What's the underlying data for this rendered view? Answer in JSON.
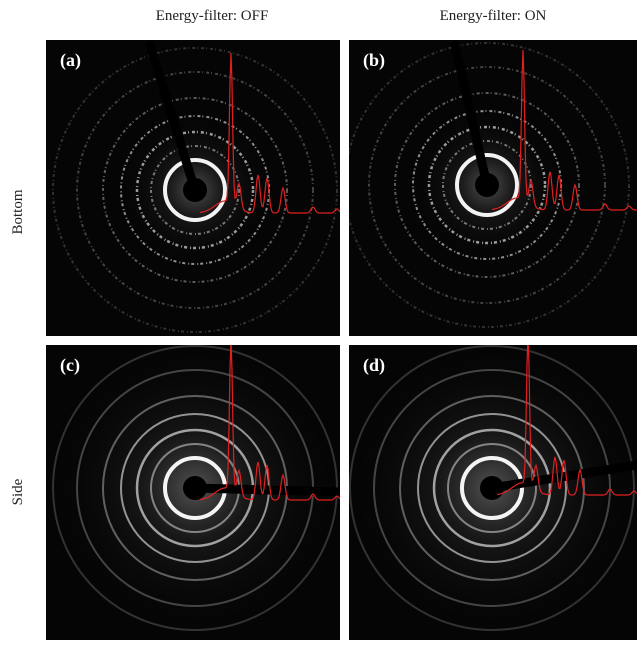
{
  "columns": [
    "Energy-filter: OFF",
    "Energy-filter: ON"
  ],
  "rows": [
    "Bottom",
    "Side"
  ],
  "panels": [
    "(a)",
    "(b)",
    "(c)",
    "(d)"
  ]
}
